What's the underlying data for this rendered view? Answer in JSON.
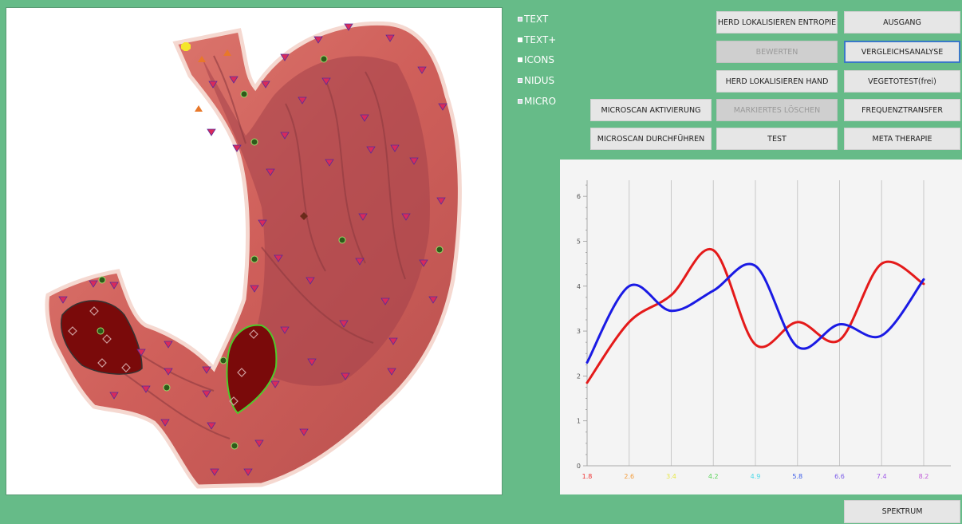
{
  "checkboxes": [
    {
      "label": "TEXT",
      "checked": true
    },
    {
      "label": "TEXT+",
      "checked": false
    },
    {
      "label": "ICONS",
      "checked": false
    },
    {
      "label": "NIDUS",
      "checked": true
    },
    {
      "label": "MICRO",
      "checked": true
    }
  ],
  "buttons": {
    "herd_entropie": "HERD LOKALISIEREN ENTROPIE",
    "ausgang": "AUSGANG",
    "bewerten": "BEWERTEN",
    "vergleichsanalyse": "VERGLEICHSANALYSE",
    "herd_hand": "HERD LOKALISIEREN HAND",
    "vegetotest": "VEGETOTEST(frei)",
    "microscan_aktivierung": "MICROSCAN AKTIVIERUNG",
    "markiertes_loeschen": "MARKIERTES LÖSCHEN",
    "frequenztransfer": "FREQUENZTRANSFER",
    "microscan_durchfuehren": "MICROSCAN DURCHFÜHREN",
    "test": "TEST",
    "meta_therapie": "META THERAPIE",
    "spektrum": "SPEKTRUM"
  },
  "colors": {
    "background": "#66bb88",
    "series_red": "#e41a1a",
    "series_blue": "#1a1ae4",
    "tissue": "#d96a62",
    "nidus": "#7a0a0a"
  },
  "chart_data": {
    "type": "line",
    "x": [
      "1.8",
      "2.6",
      "3.4",
      "4.2",
      "4.9",
      "5.8",
      "6.6",
      "7.4",
      "8.2"
    ],
    "x_label_colors": [
      "#e33",
      "#f39c3a",
      "#e8e84a",
      "#5ad45a",
      "#4ad8e8",
      "#3a5ae8",
      "#7a5ae8",
      "#a05ae8",
      "#c05ad8"
    ],
    "ylim": [
      0,
      6.5
    ],
    "yticks": [
      0,
      1,
      2,
      3,
      4,
      5,
      6
    ],
    "grid_vertical": true,
    "grid_horizontal": false,
    "series": [
      {
        "color": "#e41a1a",
        "values": [
          1.85,
          3.2,
          3.8,
          4.8,
          2.7,
          3.2,
          2.8,
          4.5,
          4.05
        ]
      },
      {
        "color": "#1a1ae4",
        "values": [
          2.3,
          4.0,
          3.45,
          3.9,
          4.45,
          2.65,
          3.15,
          2.9,
          4.15
        ]
      }
    ]
  }
}
